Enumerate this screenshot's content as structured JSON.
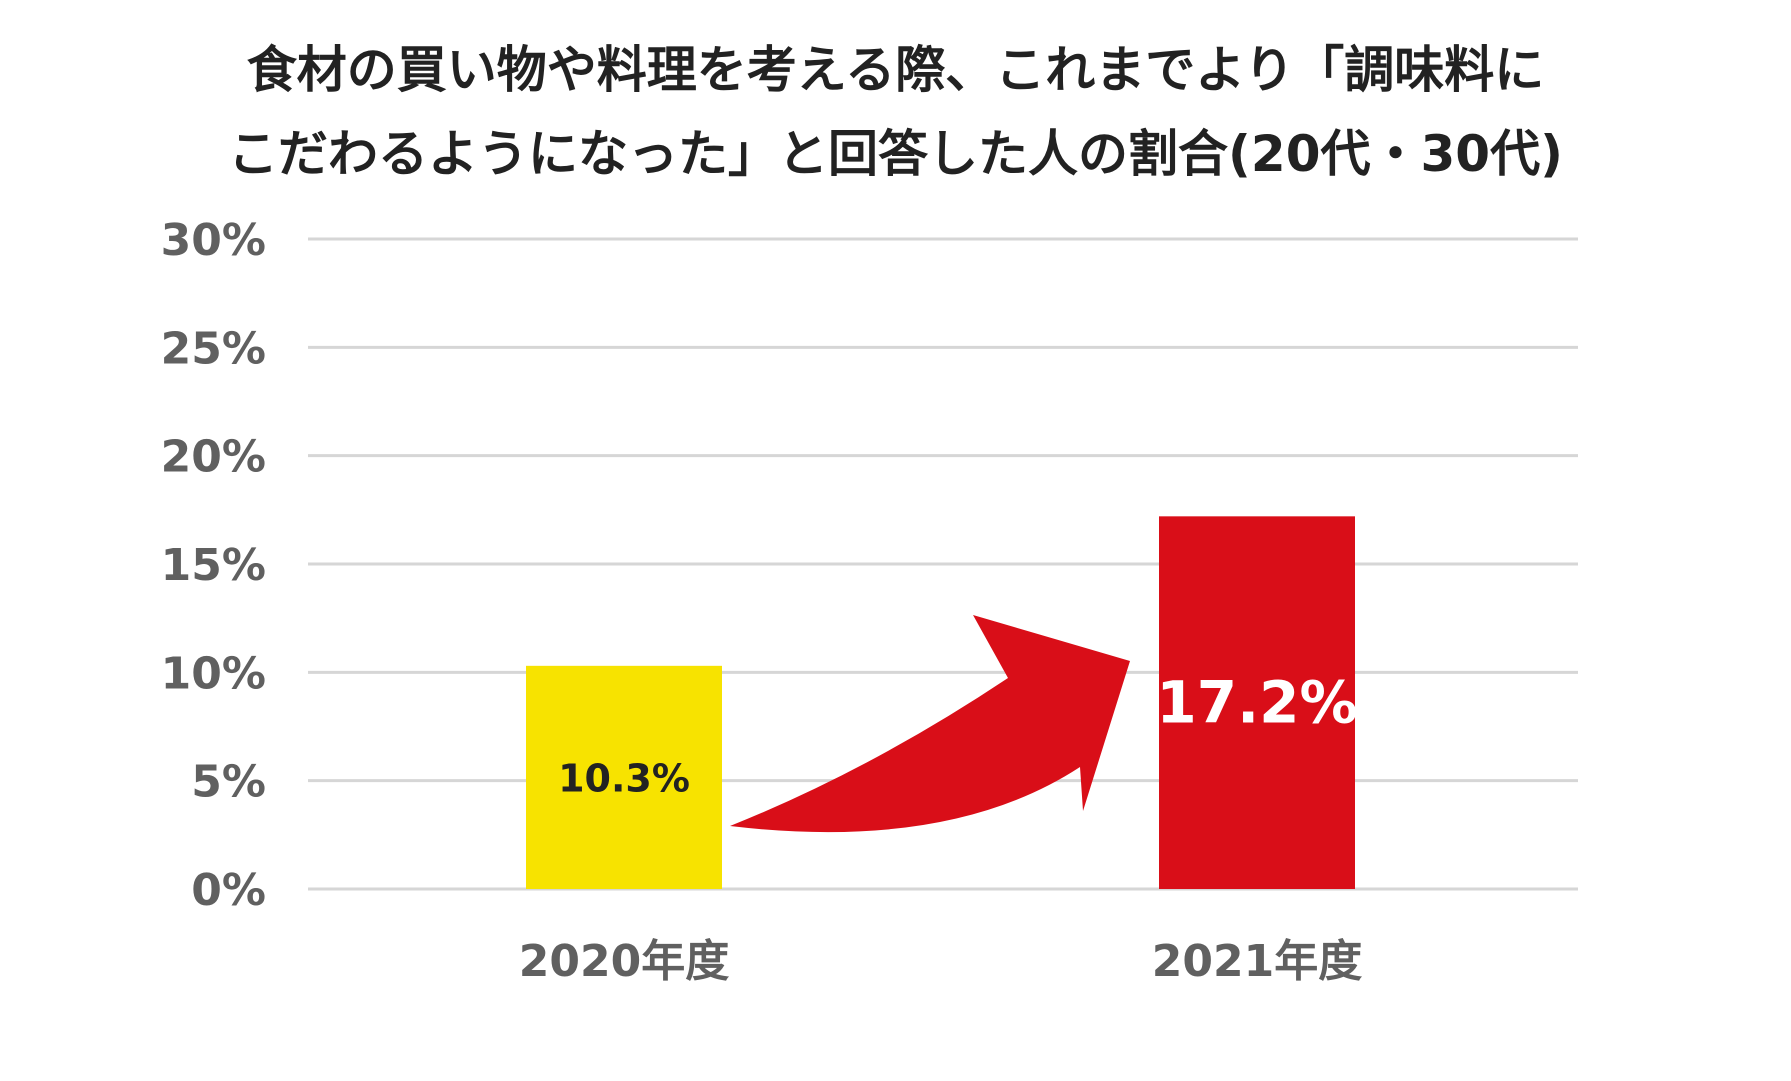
{
  "chart_data": {
    "type": "bar",
    "title": {
      "line1": "食材の買い物や料理を考える際、これまでより「調味料に",
      "line2": "こだわるようになった」と回答した人の割合(20代・30代)"
    },
    "categories": [
      "2020年度",
      "2021年度"
    ],
    "values": [
      10.3,
      17.2
    ],
    "value_labels": [
      "10.3%",
      "17.2%"
    ],
    "colors": [
      "#f7e300",
      "#d90e18"
    ],
    "value_label_colors": [
      "#222222",
      "#ffffff"
    ],
    "y_ticks": [
      {
        "value": 0,
        "label": "0%"
      },
      {
        "value": 5,
        "label": "5%"
      },
      {
        "value": 10,
        "label": "10%"
      },
      {
        "value": 15,
        "label": "15%"
      },
      {
        "value": 20,
        "label": "20%"
      },
      {
        "value": 25,
        "label": "25%"
      },
      {
        "value": 30,
        "label": "30%"
      }
    ],
    "ylim": [
      0,
      30
    ],
    "grid": true,
    "legend": "none",
    "annotation": {
      "type": "arrow",
      "from_category": "2020年度",
      "to_category": "2021年度",
      "color": "#d90e18"
    }
  }
}
